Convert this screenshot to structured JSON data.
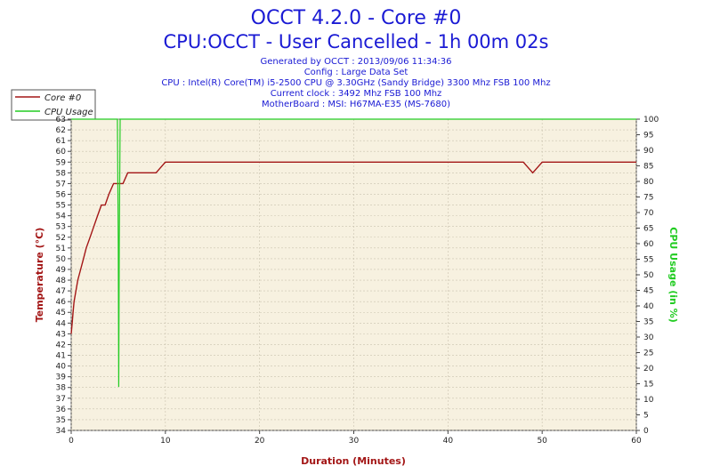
{
  "header": {
    "title": "OCCT 4.2.0 - Core #0",
    "subtitle": "CPU:OCCT - User Cancelled - 1h 00m 02s",
    "info": [
      "Generated by OCCT : 2013/09/06 11:34:36",
      "Config : Large Data Set",
      "CPU : Intel(R) Core(TM) i5-2500 CPU @ 3.30GHz (Sandy Bridge) 3300 Mhz FSB 100 Mhz",
      "Current clock : 3492 Mhz FSB 100 Mhz",
      "MotherBoard : MSI: H67MA-E35 (MS-7680)"
    ]
  },
  "colors": {
    "temperature": "#a31616",
    "cpu_usage": "#22cc22",
    "plot_bg": "#f7f1e0",
    "title": "#1a1ad4"
  },
  "chart_data": {
    "type": "line",
    "xlabel": "Duration (Minutes)",
    "ylabel": "Temperature (°C)",
    "y2label": "CPU Usage (in %)",
    "xlim": [
      0,
      60
    ],
    "ylim": [
      34,
      63
    ],
    "y2lim": [
      0,
      100
    ],
    "x_ticks": [
      0,
      10,
      20,
      30,
      40,
      50,
      60
    ],
    "y_ticks": [
      34,
      35,
      36,
      37,
      38,
      39,
      40,
      41,
      42,
      43,
      44,
      45,
      46,
      47,
      48,
      49,
      50,
      51,
      52,
      53,
      54,
      55,
      56,
      57,
      58,
      59,
      60,
      61,
      62,
      63
    ],
    "y2_ticks": [
      0,
      5,
      10,
      15,
      20,
      25,
      30,
      35,
      40,
      45,
      50,
      55,
      60,
      65,
      70,
      75,
      80,
      85,
      90,
      95,
      100
    ],
    "grid": true,
    "legend_position": "top-left",
    "series": [
      {
        "name": "Core #0",
        "axis": "left",
        "color": "#a31616",
        "x": [
          0,
          0.1,
          0.2,
          0.3,
          0.5,
          0.7,
          1.0,
          1.3,
          1.6,
          2.0,
          2.4,
          2.8,
          3.2,
          3.6,
          4.0,
          4.5,
          5.0,
          5.5,
          6.0,
          6.5,
          7.0,
          8.0,
          9.0,
          10.0,
          11.0,
          13.0,
          15.0,
          18.0,
          20.0,
          22.0,
          25.0,
          28.0,
          30.0,
          33.0,
          35.0,
          38.0,
          40.0,
          42.0,
          44.0,
          46.0,
          48.0,
          49.0,
          50.0,
          52.0,
          55.0,
          58.0,
          60.0
        ],
        "y": [
          43,
          44,
          45,
          46,
          47,
          48,
          49,
          50,
          51,
          52,
          53,
          54,
          55,
          55,
          56,
          57,
          57,
          57,
          58,
          58,
          58,
          58,
          58,
          59,
          59,
          59,
          59,
          59,
          59,
          59,
          59,
          59,
          59,
          59,
          59,
          59,
          59,
          59,
          59,
          59,
          59,
          58,
          59,
          59,
          59,
          59,
          59
        ]
      },
      {
        "name": "CPU Usage",
        "axis": "right",
        "color": "#22cc22",
        "x": [
          0,
          4.9,
          5.0,
          5.05,
          5.1,
          5.2,
          60
        ],
        "y": [
          100,
          100,
          60,
          14,
          60,
          100,
          100
        ]
      }
    ]
  }
}
